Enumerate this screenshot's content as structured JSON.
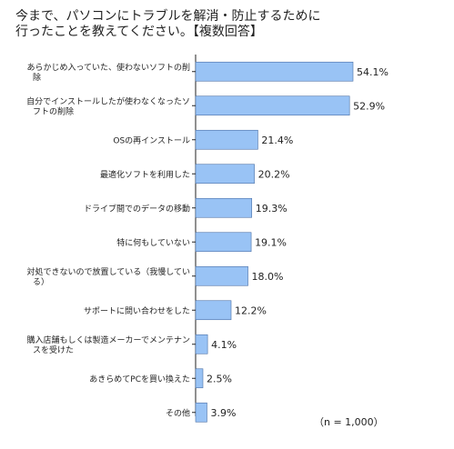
{
  "title": "今まで、パソコンにトラブルを解消・防止するために\n行ったことを教えてください。【複数回答】",
  "note": "（n = 1,000）",
  "colors": {
    "bar_fill": "#99c3f5",
    "bar_stroke": "#4a6fa5",
    "axis": "#222222"
  },
  "chart_data": {
    "type": "bar",
    "orientation": "horizontal",
    "categories": [
      "あらかじめ入っていた、使わないソフトの削除",
      "自分でインストールしたが使わなくなったソフトの削除",
      "OSの再インストール",
      "最適化ソフトを利用した",
      "ドライブ間でのデータの移動",
      "特に何もしていない",
      "対処できないので放置している（我慢している）",
      "サポートに問い合わせをした",
      "購入店舗もしくは製造メーカーでメンテナンスを受けた",
      "あきらめてPCを買い換えた",
      "その他"
    ],
    "category_lines": [
      [
        "あらかじめ入っていた、使わないソフトの削",
        "除"
      ],
      [
        "自分でインストールしたが使わなくなったソ",
        "フトの削除"
      ],
      [
        "OSの再インストール"
      ],
      [
        "最適化ソフトを利用した"
      ],
      [
        "ドライブ間でのデータの移動"
      ],
      [
        "特に何もしていない"
      ],
      [
        "対処できないので放置している（我慢してい",
        "る）"
      ],
      [
        "サポートに問い合わせをした"
      ],
      [
        "購入店舗もしくは製造メーカーでメンテナン",
        "スを受けた"
      ],
      [
        "あきらめてPCを買い換えた"
      ],
      [
        "その他"
      ]
    ],
    "values": [
      54.1,
      52.9,
      21.4,
      20.2,
      19.3,
      19.1,
      18.0,
      12.2,
      4.1,
      2.5,
      3.9
    ],
    "value_labels": [
      "54.1%",
      "52.9%",
      "21.4%",
      "20.2%",
      "19.3%",
      "19.1%",
      "18.0%",
      "12.2%",
      "4.1%",
      "2.5%",
      "3.9%"
    ],
    "xlim": [
      0,
      70
    ]
  }
}
